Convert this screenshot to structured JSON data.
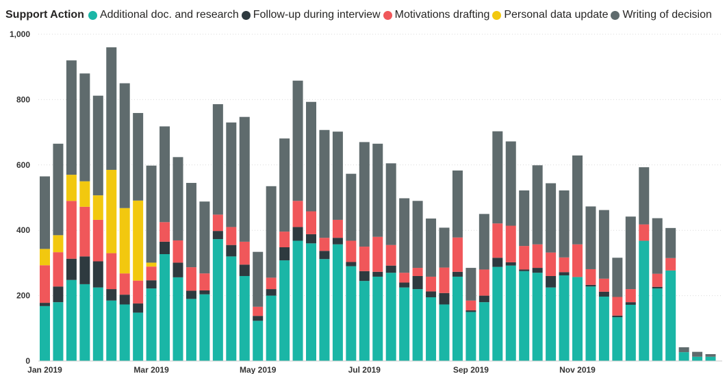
{
  "chart_data": {
    "type": "bar",
    "stacked": true,
    "legend_title": "Support Action",
    "legend_position": "top-left",
    "series": [
      {
        "name": "Additional doc. and research",
        "color": "#1ab6a6",
        "values": [
          168,
          180,
          248,
          235,
          225,
          185,
          173,
          148,
          222,
          327,
          256,
          190,
          204,
          373,
          320,
          260,
          123,
          200,
          308,
          368,
          360,
          312,
          357,
          290,
          245,
          258,
          270,
          225,
          220,
          195,
          173,
          258,
          150,
          180,
          288,
          292,
          275,
          270,
          225,
          262,
          257,
          228,
          197,
          134,
          172,
          368,
          222,
          277,
          27,
          13,
          13
        ]
      },
      {
        "name": "Follow-up during interview",
        "color": "#2e3a3f",
        "values": [
          10,
          48,
          65,
          85,
          80,
          35,
          30,
          28,
          25,
          38,
          45,
          25,
          12,
          25,
          35,
          35,
          15,
          20,
          40,
          42,
          28,
          25,
          20,
          13,
          30,
          15,
          22,
          15,
          40,
          18,
          35,
          15,
          5,
          20,
          28,
          10,
          5,
          15,
          35,
          10,
          0,
          5,
          15,
          5,
          8,
          0,
          5,
          0,
          0,
          0,
          0
        ]
      },
      {
        "name": "Motivations drafting",
        "color": "#f0575a",
        "values": [
          115,
          105,
          177,
          152,
          127,
          110,
          65,
          70,
          42,
          60,
          68,
          72,
          52,
          50,
          55,
          70,
          28,
          35,
          48,
          80,
          70,
          40,
          55,
          65,
          75,
          107,
          63,
          30,
          25,
          45,
          78,
          105,
          30,
          80,
          105,
          112,
          72,
          72,
          72,
          45,
          100,
          48,
          40,
          57,
          40,
          50,
          40,
          38,
          0,
          0,
          0
        ]
      },
      {
        "name": "Personal data update",
        "color": "#f2c80f",
        "values": [
          50,
          52,
          80,
          78,
          75,
          255,
          200,
          245,
          12,
          0,
          0,
          0,
          0,
          0,
          0,
          0,
          0,
          0,
          0,
          0,
          0,
          0,
          0,
          0,
          0,
          0,
          0,
          0,
          0,
          0,
          0,
          0,
          0,
          0,
          0,
          0,
          0,
          0,
          0,
          0,
          0,
          0,
          0,
          0,
          0,
          0,
          0,
          0,
          0,
          0,
          0
        ]
      },
      {
        "name": "Writing of decision",
        "color": "#5f6b6d",
        "values": [
          222,
          280,
          350,
          330,
          305,
          375,
          382,
          268,
          297,
          293,
          255,
          258,
          220,
          338,
          320,
          382,
          168,
          280,
          285,
          368,
          335,
          330,
          270,
          205,
          320,
          285,
          250,
          228,
          205,
          178,
          122,
          205,
          100,
          170,
          282,
          258,
          170,
          242,
          212,
          205,
          272,
          192,
          210,
          120,
          222,
          175,
          170,
          92,
          15,
          15,
          8
        ]
      }
    ],
    "x_tick_labels": [
      "Jan 2019",
      "Mar 2019",
      "May 2019",
      "Jul 2019",
      "Sep 2019",
      "Nov 2019"
    ],
    "y_tick_labels": [
      "0",
      "200",
      "400",
      "600",
      "800",
      "1,000"
    ],
    "ylim": [
      0,
      1000
    ],
    "xlabel": "",
    "ylabel": "",
    "grid": true
  }
}
